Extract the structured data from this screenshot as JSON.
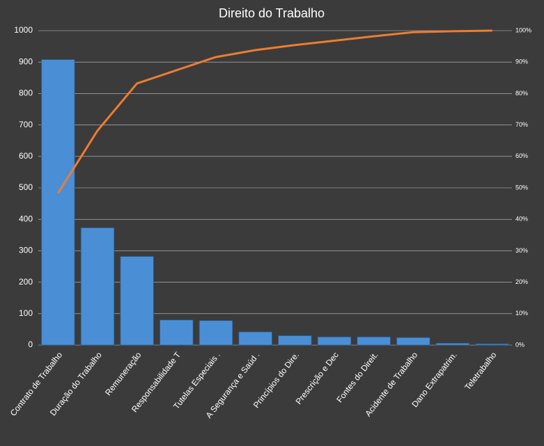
{
  "chart_data": {
    "type": "pareto",
    "title": "Direito do Trabalho",
    "categories": [
      "Contrato de Trabalho",
      "Duração do Trabalho",
      "Remuneração",
      "Responsabilidade T",
      "Tutelas Especiais .",
      "A Segurança e Saúd .",
      "Princípios do Dire.",
      "Prescrição e Dec",
      "Fontes do Direit.",
      "Acidente de Trabalho",
      "Dano Extrapatrim.",
      "Teletrabalho"
    ],
    "series": [
      {
        "type": "bar",
        "color": "#4a8fd6",
        "values": [
          908,
          373,
          282,
          80,
          78,
          42,
          30,
          26,
          26,
          24,
          6,
          4
        ]
      },
      {
        "type": "line",
        "axis": "y2",
        "color": "#ed7d31",
        "values": [
          48.3,
          68.2,
          83.2,
          87.4,
          91.6,
          93.8,
          95.4,
          96.8,
          98.2,
          99.5,
          99.8,
          100
        ]
      }
    ],
    "ylim": [
      0,
      1000
    ],
    "yticks": [
      0,
      100,
      200,
      300,
      400,
      500,
      600,
      700,
      800,
      900,
      1000
    ],
    "y2lim": [
      0,
      100
    ],
    "y2ticks": [
      {
        "value": 0,
        "label": "0%"
      },
      {
        "value": 10,
        "label": "10%"
      },
      {
        "value": 20,
        "label": "20%"
      },
      {
        "value": 30,
        "label": "30%"
      },
      {
        "value": 40,
        "label": "40%"
      },
      {
        "value": 50,
        "label": "50%"
      },
      {
        "value": 60,
        "label": "60%"
      },
      {
        "value": 70,
        "label": "70%"
      },
      {
        "value": 80,
        "label": "80%"
      },
      {
        "value": 90,
        "label": "90%"
      },
      {
        "value": 100,
        "label": "100%"
      }
    ],
    "grid": true
  }
}
